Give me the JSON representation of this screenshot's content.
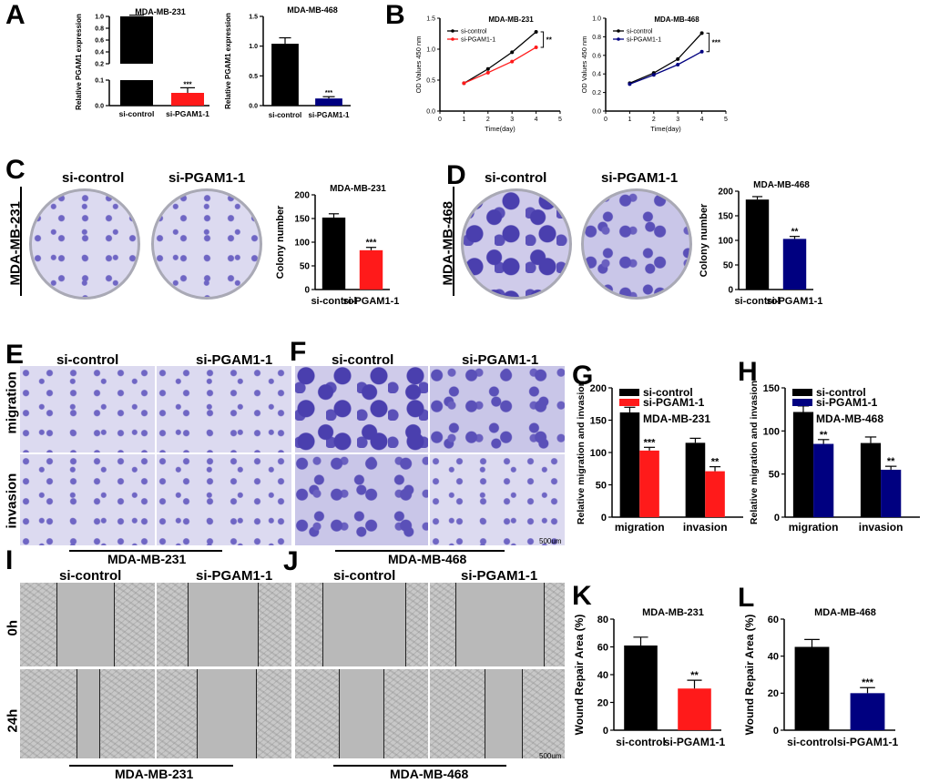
{
  "panels": {
    "A": "A",
    "B": "B",
    "C": "C",
    "D": "D",
    "E": "E",
    "F": "F",
    "G": "G",
    "H": "H",
    "I": "I",
    "J": "J",
    "K": "K",
    "L": "L"
  },
  "labels": {
    "si_control": "si-control",
    "si_pgam1": "si-PGAM1-1",
    "mda231": "MDA-MB-231",
    "mda468": "MDA-MB-468",
    "migration": "migration",
    "invasion": "invasion",
    "h0": "0h",
    "h24": "24h",
    "scalebar": "500um"
  },
  "colors": {
    "black": "#000000",
    "red": "#ff1a1a",
    "navy": "#000080"
  },
  "chart_data": [
    {
      "id": "A1",
      "type": "bar",
      "title": "MDA-MB-231",
      "ylabel": "Relative PGAM1 expression",
      "categories": [
        "si-control",
        "si-PGAM1-1"
      ],
      "values": [
        1.0,
        0.05
      ],
      "errors": [
        0.02,
        0.02
      ],
      "colors": [
        "#000000",
        "#ff1a1a"
      ],
      "ylim": [
        0,
        1.0
      ],
      "broken_axis": true,
      "yticks": [
        "0.0",
        "0.1",
        "0.2",
        "0.4",
        "0.6",
        "0.8",
        "1.0"
      ],
      "annotations": [
        "***"
      ]
    },
    {
      "id": "A2",
      "type": "bar",
      "title": "MDA-MB-468",
      "ylabel": "Relative PGAM1 expression",
      "categories": [
        "si-control",
        "si-PGAM1-1"
      ],
      "values": [
        1.04,
        0.12
      ],
      "errors": [
        0.1,
        0.03
      ],
      "colors": [
        "#000000",
        "#000080"
      ],
      "ylim": [
        0,
        1.5
      ],
      "yticks": [
        "0.0",
        "0.5",
        "1.0",
        "1.5"
      ],
      "annotations": [
        "***"
      ]
    },
    {
      "id": "B1",
      "type": "line",
      "title": "MDA-MB-231",
      "xlabel": "Time(day)",
      "ylabel": "OD Values 450 nm",
      "xlim": [
        0,
        5
      ],
      "ylim": [
        0.0,
        1.5
      ],
      "xticks": [
        "0",
        "1",
        "2",
        "3",
        "4",
        "5"
      ],
      "yticks": [
        "0.0",
        "0.5",
        "1.0",
        "1.5"
      ],
      "series": [
        {
          "name": "si-control",
          "color": "#000000",
          "x": [
            1,
            2,
            3,
            4
          ],
          "y": [
            0.45,
            0.68,
            0.95,
            1.28
          ]
        },
        {
          "name": "si-PGAM1-1",
          "color": "#ff1a1a",
          "x": [
            1,
            2,
            3,
            4
          ],
          "y": [
            0.45,
            0.62,
            0.8,
            1.03
          ]
        }
      ],
      "annotations": [
        "**"
      ]
    },
    {
      "id": "B2",
      "type": "line",
      "title": "MDA-MB-468",
      "xlabel": "Time(day)",
      "ylabel": "OD Values 450 nm",
      "xlim": [
        0,
        5
      ],
      "ylim": [
        0.0,
        1.0
      ],
      "xticks": [
        "0",
        "1",
        "2",
        "3",
        "4",
        "5"
      ],
      "yticks": [
        "0.0",
        "0.2",
        "0.4",
        "0.6",
        "0.8",
        "1.0"
      ],
      "series": [
        {
          "name": "si-control",
          "color": "#000000",
          "x": [
            1,
            2,
            3,
            4
          ],
          "y": [
            0.3,
            0.41,
            0.56,
            0.84
          ]
        },
        {
          "name": "si-PGAM1-1",
          "color": "#000080",
          "x": [
            1,
            2,
            3,
            4
          ],
          "y": [
            0.29,
            0.39,
            0.5,
            0.64
          ]
        }
      ],
      "annotations": [
        "***"
      ]
    },
    {
      "id": "C",
      "type": "bar",
      "title": "MDA-MB-231",
      "ylabel": "Colony number",
      "categories": [
        "si-control",
        "si-PGAM1-1"
      ],
      "values": [
        152,
        83
      ],
      "errors": [
        8,
        6
      ],
      "colors": [
        "#000000",
        "#ff1a1a"
      ],
      "ylim": [
        0,
        200
      ],
      "yticks": [
        "0",
        "50",
        "100",
        "150",
        "200"
      ],
      "annotations": [
        "***"
      ]
    },
    {
      "id": "D",
      "type": "bar",
      "title": "MDA-MB-468",
      "ylabel": "Colony number",
      "categories": [
        "si-control",
        "si-PGAM1-1"
      ],
      "values": [
        183,
        103
      ],
      "errors": [
        6,
        5
      ],
      "colors": [
        "#000000",
        "#000080"
      ],
      "ylim": [
        0,
        200
      ],
      "yticks": [
        "0",
        "50",
        "100",
        "150",
        "200"
      ],
      "annotations": [
        "**"
      ]
    },
    {
      "id": "G",
      "type": "bar",
      "subtitle": "MDA-MB-231",
      "ylabel": "Relative migration and invasion",
      "categories": [
        "migration",
        "invasion"
      ],
      "series": [
        {
          "name": "si-control",
          "color": "#000000",
          "values": [
            162,
            115
          ],
          "errors": [
            8,
            7
          ]
        },
        {
          "name": "si-PGAM1-1",
          "color": "#ff1a1a",
          "values": [
            103,
            71
          ],
          "errors": [
            5,
            7
          ]
        }
      ],
      "ylim": [
        0,
        200
      ],
      "yticks": [
        "0",
        "50",
        "100",
        "150",
        "200"
      ],
      "annotations": [
        "***",
        "**"
      ]
    },
    {
      "id": "H",
      "type": "bar",
      "subtitle": "MDA-MB-468",
      "ylabel": "Relative migration and invasion",
      "categories": [
        "migration",
        "invasion"
      ],
      "series": [
        {
          "name": "si-control",
          "color": "#000000",
          "values": [
            122,
            86
          ],
          "errors": [
            7,
            7
          ]
        },
        {
          "name": "si-PGAM1-1",
          "color": "#000080",
          "values": [
            85,
            55
          ],
          "errors": [
            5,
            4
          ]
        }
      ],
      "ylim": [
        0,
        150
      ],
      "yticks": [
        "0",
        "50",
        "100",
        "150"
      ],
      "annotations": [
        "**",
        "**"
      ]
    },
    {
      "id": "K",
      "type": "bar",
      "title": "MDA-MB-231",
      "ylabel": "Wound Repair Area (%)",
      "categories": [
        "si-control",
        "si-PGAM1-1"
      ],
      "values": [
        61,
        30
      ],
      "errors": [
        6,
        6
      ],
      "colors": [
        "#000000",
        "#ff1a1a"
      ],
      "ylim": [
        0,
        80
      ],
      "yticks": [
        "0",
        "20",
        "40",
        "60",
        "80"
      ],
      "annotations": [
        "**"
      ]
    },
    {
      "id": "L",
      "type": "bar",
      "title": "MDA-MB-468",
      "ylabel": "Wound Repair Area (%)",
      "categories": [
        "si-control",
        "si-PGAM1-1"
      ],
      "values": [
        45,
        20
      ],
      "errors": [
        4,
        3
      ],
      "colors": [
        "#000000",
        "#000080"
      ],
      "ylim": [
        0,
        60
      ],
      "yticks": [
        "0",
        "20",
        "40",
        "60"
      ],
      "annotations": [
        "***"
      ]
    }
  ]
}
